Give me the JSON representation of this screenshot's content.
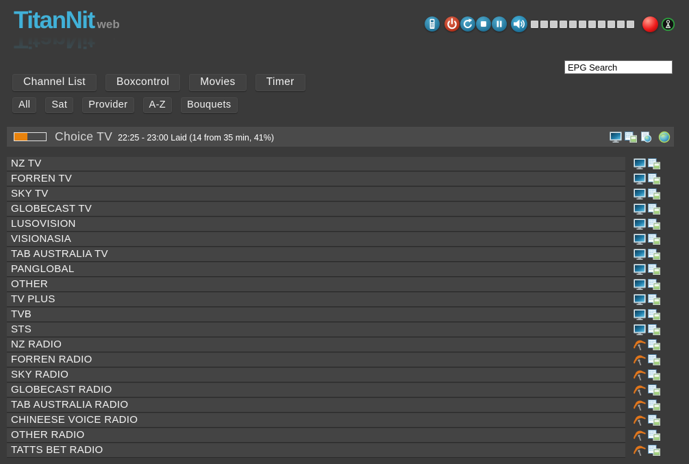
{
  "app": {
    "logo_text": "TitanNit",
    "logo_suffix": "web"
  },
  "topbar": {
    "controls": [
      {
        "label": "Remote",
        "icon": "remote-icon"
      },
      {
        "label": "Power",
        "icon": "power-icon"
      },
      {
        "label": "Restart",
        "icon": "restart-icon"
      },
      {
        "label": "Stop",
        "icon": "stop-icon"
      },
      {
        "label": "Pause",
        "icon": "pause-icon"
      }
    ],
    "volume": {
      "icon": "speaker-icon",
      "segments": 11
    },
    "record_indicator_icon": "record-ball-icon",
    "signal_indicator_icon": "antenna-signal-icon"
  },
  "search": {
    "value": "EPG Search"
  },
  "nav": {
    "items": [
      {
        "label": "Channel List"
      },
      {
        "label": "Boxcontrol"
      },
      {
        "label": "Movies"
      },
      {
        "label": "Timer"
      }
    ]
  },
  "filters": {
    "items": [
      {
        "label": "All"
      },
      {
        "label": "Sat"
      },
      {
        "label": "Provider"
      },
      {
        "label": "A-Z"
      },
      {
        "label": "Bouquets"
      }
    ]
  },
  "now_playing": {
    "channel": "Choice TV",
    "epg_info": "22:25 - 23:00 Laid (14 from 35 min, 41%)",
    "progress_percent": 41,
    "action_icons": [
      "tv-monitor-icon",
      "epg-list-icon",
      "web-epg-icon",
      "globe-icon"
    ]
  },
  "channel_list": [
    {
      "name": "NZ TV",
      "type": "tv"
    },
    {
      "name": "FORREN TV",
      "type": "tv"
    },
    {
      "name": "SKY TV",
      "type": "tv"
    },
    {
      "name": "GLOBECAST TV",
      "type": "tv"
    },
    {
      "name": "LUSOVISION",
      "type": "tv"
    },
    {
      "name": "VISIONASIA",
      "type": "tv"
    },
    {
      "name": "TAB AUSTRALIA TV",
      "type": "tv"
    },
    {
      "name": "PANGLOBAL",
      "type": "tv"
    },
    {
      "name": "OTHER",
      "type": "tv"
    },
    {
      "name": "TV PLUS",
      "type": "tv"
    },
    {
      "name": "TVB",
      "type": "tv"
    },
    {
      "name": "STS",
      "type": "tv"
    },
    {
      "name": "NZ RADIO",
      "type": "radio"
    },
    {
      "name": "FORREN RADIO",
      "type": "radio"
    },
    {
      "name": "SKY RADIO",
      "type": "radio"
    },
    {
      "name": "GLOBECAST RADIO",
      "type": "radio"
    },
    {
      "name": "TAB AUSTRALIA RADIO",
      "type": "radio"
    },
    {
      "name": "CHINEESE VOICE RADIO",
      "type": "radio"
    },
    {
      "name": "OTHER RADIO",
      "type": "radio"
    },
    {
      "name": "TATTS BET RADIO",
      "type": "radio"
    }
  ],
  "colors": {
    "brand_blue": "#41b1d8",
    "progress_orange": "#e8820c",
    "power_red": "#b02c15",
    "record_red": "#ee1b1b",
    "signal_green": "#2f9e3f"
  }
}
